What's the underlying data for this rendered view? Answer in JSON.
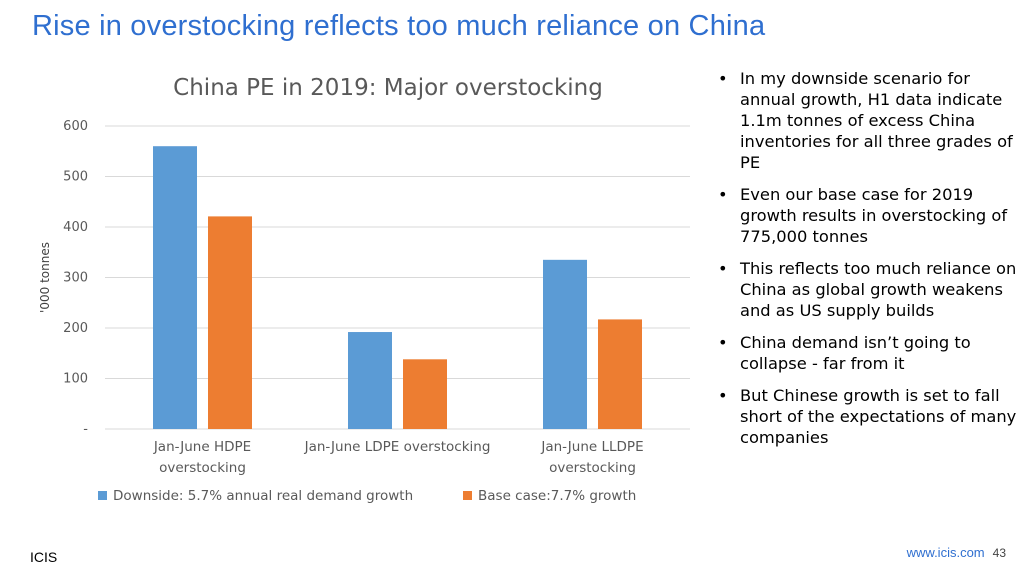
{
  "slide": {
    "title": "Rise in overstocking reflects too much reliance on China",
    "footer_left": "ICIS",
    "footer_url": "www.icis.com",
    "page_number": "43"
  },
  "bullets": [
    "In my downside scenario for annual growth, H1 data indicate 1.1m tonnes of excess China inventories for all three grades of PE",
    "Even our base case for 2019 growth results in overstocking of 775,000 tonnes",
    "This reflects too much reliance on China as global growth weakens and as US supply builds",
    "China demand isn’t going to collapse -  far from it",
    "But Chinese growth is set to fall short of the expectations of many companies"
  ],
  "chart_data": {
    "type": "bar",
    "title": "China PE in 2019: Major overstocking",
    "xlabel": "",
    "ylabel": "'000 tonnes",
    "ylim": [
      0,
      600
    ],
    "yticks": [
      0,
      100,
      200,
      300,
      400,
      500,
      600
    ],
    "ytick_labels": [
      "-",
      "100",
      "200",
      "300",
      "400",
      "500",
      "600"
    ],
    "grid": true,
    "legend_position": "bottom",
    "categories": [
      [
        "Jan-June HDPE",
        "overstocking"
      ],
      [
        "Jan-June LDPE overstocking"
      ],
      [
        "Jan-June LLDPE",
        "overstocking"
      ]
    ],
    "series": [
      {
        "name": "Downside: 5.7% annual real demand growth",
        "color": "#5B9BD5",
        "values": [
          560,
          192,
          335
        ]
      },
      {
        "name": "Base case:7.7% growth",
        "color": "#ED7D31",
        "values": [
          421,
          138,
          217
        ]
      }
    ]
  }
}
